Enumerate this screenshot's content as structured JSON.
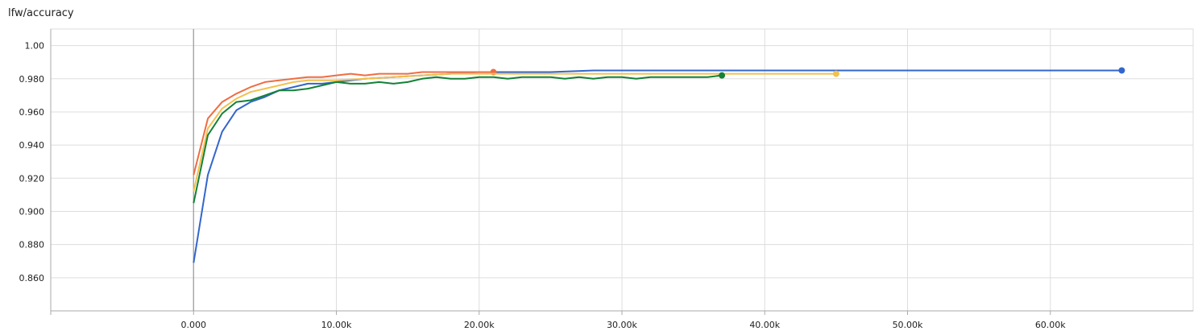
{
  "chart_data": {
    "type": "line",
    "title": "lfw/accuracy",
    "xlabel": "",
    "ylabel": "",
    "xlim": [
      -10000,
      70000
    ],
    "ylim": [
      0.84,
      1.01
    ],
    "grid": true,
    "x_ticks": [
      {
        "value": 0,
        "label": "0.000"
      },
      {
        "value": 10000,
        "label": "10.00k"
      },
      {
        "value": 20000,
        "label": "20.00k"
      },
      {
        "value": 30000,
        "label": "30.00k"
      },
      {
        "value": 40000,
        "label": "40.00k"
      },
      {
        "value": 50000,
        "label": "50.00k"
      },
      {
        "value": 60000,
        "label": "60.00k"
      }
    ],
    "y_ticks": [
      {
        "value": 0.86,
        "label": "0.860"
      },
      {
        "value": 0.88,
        "label": "0.880"
      },
      {
        "value": 0.9,
        "label": "0.900"
      },
      {
        "value": 0.92,
        "label": "0.920"
      },
      {
        "value": 0.94,
        "label": "0.940"
      },
      {
        "value": 0.96,
        "label": "0.960"
      },
      {
        "value": 0.98,
        "label": "0.980"
      },
      {
        "value": 1.0,
        "label": "1.00"
      }
    ],
    "series": [
      {
        "color": "#3366cc",
        "x": [
          0,
          1000,
          2000,
          3000,
          4000,
          5000,
          6000,
          7000,
          8000,
          9000,
          10000,
          12000,
          14000,
          16000,
          18000,
          20000,
          22000,
          25000,
          28000,
          30000,
          32000,
          35000,
          37000,
          40000,
          45000,
          50000,
          55000,
          60000,
          65000
        ],
        "y": [
          0.869,
          0.922,
          0.948,
          0.961,
          0.966,
          0.969,
          0.973,
          0.975,
          0.977,
          0.977,
          0.978,
          0.98,
          0.981,
          0.982,
          0.983,
          0.984,
          0.984,
          0.984,
          0.985,
          0.985,
          0.985,
          0.985,
          0.985,
          0.985,
          0.985,
          0.985,
          0.985,
          0.985,
          0.985
        ]
      },
      {
        "color": "#ee6d44",
        "x": [
          0,
          1000,
          2000,
          3000,
          4000,
          5000,
          6000,
          7000,
          8000,
          9000,
          10000,
          11000,
          12000,
          13000,
          14000,
          15000,
          16000,
          17000,
          18000,
          19000,
          20000,
          21000
        ],
        "y": [
          0.922,
          0.956,
          0.966,
          0.971,
          0.975,
          0.978,
          0.979,
          0.98,
          0.981,
          0.981,
          0.982,
          0.983,
          0.982,
          0.983,
          0.983,
          0.983,
          0.984,
          0.984,
          0.984,
          0.984,
          0.984,
          0.984
        ]
      },
      {
        "color": "#f2c14e",
        "x": [
          0,
          1000,
          2000,
          3000,
          4000,
          5000,
          6000,
          7000,
          8000,
          9000,
          10000,
          12000,
          14000,
          16000,
          18000,
          20000,
          22000,
          25000,
          28000,
          30000,
          33000,
          36000,
          40000,
          42000,
          45000
        ],
        "y": [
          0.912,
          0.95,
          0.962,
          0.968,
          0.972,
          0.974,
          0.976,
          0.978,
          0.979,
          0.979,
          0.979,
          0.98,
          0.981,
          0.982,
          0.983,
          0.983,
          0.983,
          0.983,
          0.983,
          0.983,
          0.983,
          0.983,
          0.983,
          0.983,
          0.983
        ]
      },
      {
        "color": "#138136",
        "x": [
          0,
          1000,
          2000,
          3000,
          4000,
          5000,
          6000,
          7000,
          8000,
          9000,
          10000,
          11000,
          12000,
          13000,
          14000,
          15000,
          16000,
          17000,
          18000,
          19000,
          20000,
          21000,
          22000,
          23000,
          24000,
          25000,
          26000,
          27000,
          28000,
          29000,
          30000,
          31000,
          32000,
          33000,
          34000,
          35000,
          36000,
          37000
        ],
        "y": [
          0.905,
          0.946,
          0.959,
          0.966,
          0.967,
          0.97,
          0.973,
          0.973,
          0.974,
          0.976,
          0.978,
          0.977,
          0.977,
          0.978,
          0.977,
          0.978,
          0.98,
          0.981,
          0.98,
          0.98,
          0.981,
          0.981,
          0.98,
          0.981,
          0.981,
          0.981,
          0.98,
          0.981,
          0.98,
          0.981,
          0.981,
          0.98,
          0.981,
          0.981,
          0.981,
          0.981,
          0.981,
          0.982
        ]
      }
    ]
  }
}
